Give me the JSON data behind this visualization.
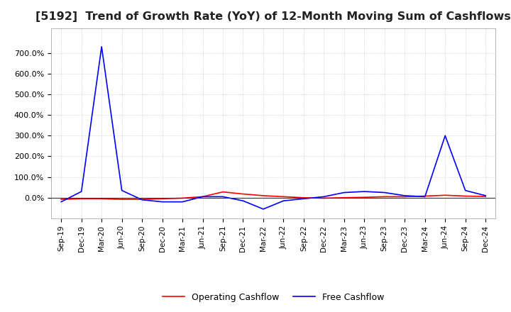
{
  "title": "[5192]  Trend of Growth Rate (YoY) of 12-Month Moving Sum of Cashflows",
  "title_fontsize": 11.5,
  "background_color": "#ffffff",
  "grid_color": "#aaaaaa",
  "x_labels": [
    "Sep-19",
    "Dec-19",
    "Mar-20",
    "Jun-20",
    "Sep-20",
    "Dec-20",
    "Mar-21",
    "Jun-21",
    "Sep-21",
    "Dec-21",
    "Mar-22",
    "Jun-22",
    "Sep-22",
    "Dec-22",
    "Mar-23",
    "Jun-23",
    "Sep-23",
    "Dec-23",
    "Mar-24",
    "Jun-24",
    "Sep-24",
    "Dec-24"
  ],
  "operating_cashflow": [
    -0.08,
    -0.05,
    -0.05,
    -0.08,
    -0.08,
    -0.05,
    -0.02,
    0.05,
    0.28,
    0.18,
    0.1,
    0.05,
    0.0,
    -0.02,
    0.0,
    0.02,
    0.05,
    0.05,
    0.08,
    0.12,
    0.08,
    0.06
  ],
  "free_cashflow": [
    -0.2,
    0.3,
    7.3,
    0.35,
    -0.1,
    -0.2,
    -0.2,
    0.05,
    0.05,
    -0.15,
    -0.55,
    -0.15,
    -0.05,
    0.05,
    0.25,
    0.3,
    0.25,
    0.1,
    0.05,
    3.0,
    0.35,
    0.1
  ],
  "operating_color": "#ff0000",
  "free_color": "#0000ff",
  "ylim_min": -1.0,
  "ylim_max": 8.2,
  "yticks": [
    0.0,
    1.0,
    2.0,
    3.0,
    4.0,
    5.0,
    6.0,
    7.0
  ],
  "ytick_labels": [
    "0.0%",
    "100.0%",
    "200.0%",
    "300.0%",
    "400.0%",
    "500.0%",
    "600.0%",
    "700.0%"
  ],
  "legend_labels": [
    "Operating Cashflow",
    "Free Cashflow"
  ]
}
